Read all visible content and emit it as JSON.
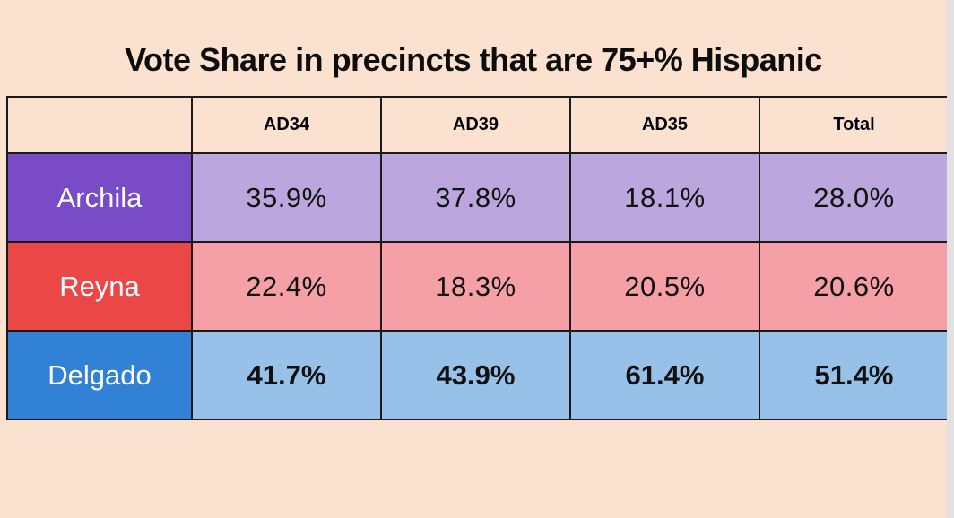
{
  "page": {
    "title": "Vote Share in precincts that are 75+% Hispanic"
  },
  "colors": {
    "background": "#FBE1D0",
    "border": "#1A1A1A",
    "title_text": "#0D0D0D",
    "value_text": "#111111",
    "row_label_text": "#FFFFFF",
    "scrollbar": "#E2E2E4"
  },
  "table": {
    "columns": [
      "",
      "AD34",
      "AD39",
      "AD35",
      "Total"
    ],
    "rows": [
      {
        "label": "Archila",
        "values": [
          "35.9%",
          "37.8%",
          "18.1%",
          "28.0%"
        ],
        "label_bg": "#7A4BC7",
        "cell_bg": "#BCA6DE",
        "bold": false
      },
      {
        "label": "Reyna",
        "values": [
          "22.4%",
          "18.3%",
          "20.5%",
          "20.6%"
        ],
        "label_bg": "#EB4747",
        "cell_bg": "#F5A0A6",
        "bold": false
      },
      {
        "label": "Delgado",
        "values": [
          "41.7%",
          "43.9%",
          "61.4%",
          "51.4%"
        ],
        "label_bg": "#3182D6",
        "cell_bg": "#98C1E9",
        "bold": true
      }
    ]
  },
  "chart_data": {
    "type": "table",
    "title": "Vote Share in precincts that are 75+% Hispanic",
    "columns": [
      "AD34",
      "AD39",
      "AD35",
      "Total"
    ],
    "rows": [
      {
        "name": "Archila",
        "values": [
          35.9,
          37.8,
          18.1,
          28.0
        ]
      },
      {
        "name": "Reyna",
        "values": [
          22.4,
          18.3,
          20.5,
          20.6
        ]
      },
      {
        "name": "Delgado",
        "values": [
          41.7,
          43.9,
          61.4,
          51.4
        ]
      }
    ],
    "unit": "%",
    "highlighted_row": "Delgado"
  }
}
